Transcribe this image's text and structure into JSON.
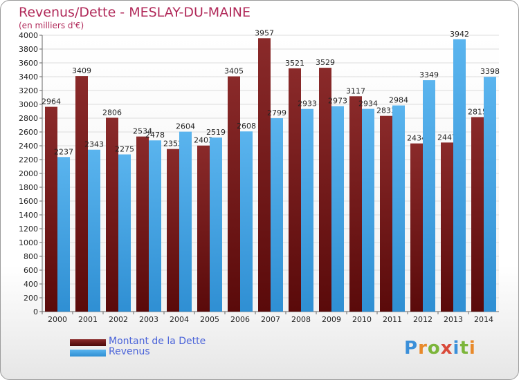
{
  "title": "Revenus/Dette - MESLAY-DU-MAINE",
  "subtitle": "(en milliers d'€)",
  "logo_text": "Proxiti",
  "chart_data": {
    "type": "bar",
    "categories": [
      "2000",
      "2001",
      "2002",
      "2003",
      "2004",
      "2005",
      "2006",
      "2007",
      "2008",
      "2009",
      "2010",
      "2011",
      "2012",
      "2013",
      "2014"
    ],
    "series": [
      {
        "name": "Montant de la Dette",
        "color": "#7a1a1a",
        "values": [
          2964,
          3409,
          2806,
          2534,
          2353,
          2403,
          3405,
          3957,
          3521,
          3529,
          3117,
          2833,
          2434,
          2447,
          2815
        ],
        "labels": [
          "2964",
          "3409",
          "2806",
          "2534",
          "2353",
          "2403",
          "3405",
          "3957",
          "3521",
          "3529",
          "3117",
          "2833",
          "2434",
          "2447",
          "2815"
        ]
      },
      {
        "name": "Revenus",
        "color": "#4aa8e8",
        "values": [
          2237,
          2343,
          2275,
          2478,
          2604,
          2519,
          2608,
          2799,
          2933,
          2973,
          2934,
          2984,
          3349,
          3942,
          3398
        ],
        "labels": [
          "2237",
          "2343",
          "2275",
          "2478",
          "2604",
          "2519",
          "2608",
          "2799",
          "2933",
          "2973",
          "2934",
          "2984",
          "3349",
          "3942",
          "3398"
        ]
      }
    ],
    "ylim": [
      0,
      4000
    ],
    "yticks": [
      0,
      200,
      400,
      600,
      800,
      1000,
      1200,
      1400,
      1600,
      1800,
      2000,
      2200,
      2400,
      2600,
      2800,
      3000,
      3200,
      3400,
      3600,
      3800,
      4000
    ],
    "grid": true,
    "legend_position": "bottom-left"
  }
}
